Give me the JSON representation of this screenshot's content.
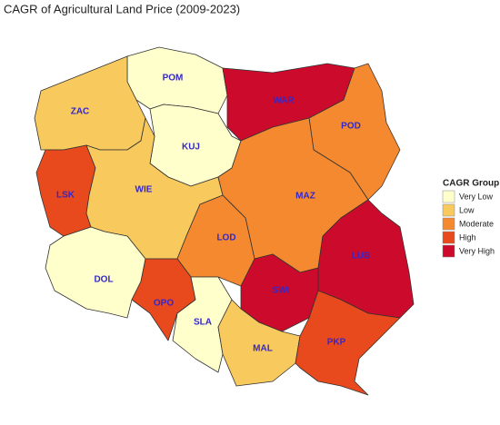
{
  "title": "CAGR of Agricultural Land Price (2009-2023)",
  "legend": {
    "title": "CAGR Group",
    "items": [
      {
        "label": "Very Low",
        "color": "#ffffcc"
      },
      {
        "label": "Low",
        "color": "#f8c95c"
      },
      {
        "label": "Moderate",
        "color": "#f4892f"
      },
      {
        "label": "High",
        "color": "#e8491d"
      },
      {
        "label": "Very High",
        "color": "#cc0a2b"
      }
    ]
  },
  "regions": [
    {
      "label": "POM",
      "group": "Very Low"
    },
    {
      "label": "WAR",
      "group": "Very High"
    },
    {
      "label": "ZAC",
      "group": "Low"
    },
    {
      "label": "POD",
      "group": "Moderate"
    },
    {
      "label": "KUJ",
      "group": "Very Low"
    },
    {
      "label": "LSK",
      "group": "High"
    },
    {
      "label": "WIE",
      "group": "Low"
    },
    {
      "label": "MAZ",
      "group": "Moderate"
    },
    {
      "label": "LOD",
      "group": "Moderate"
    },
    {
      "label": "LUB",
      "group": "Very High"
    },
    {
      "label": "DOL",
      "group": "Very Low"
    },
    {
      "label": "OPO",
      "group": "High"
    },
    {
      "label": "SLA",
      "group": "Very Low"
    },
    {
      "label": "SWI",
      "group": "Very High"
    },
    {
      "label": "MAL",
      "group": "Low"
    },
    {
      "label": "PKP",
      "group": "High"
    }
  ]
}
